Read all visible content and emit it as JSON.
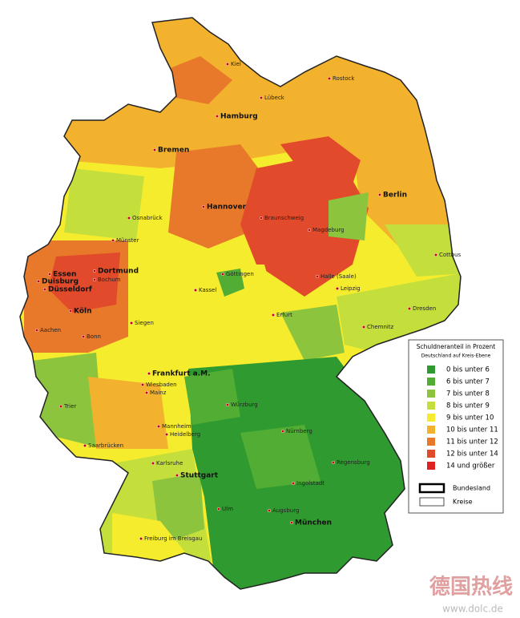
{
  "legend": {
    "title": "Schuldneranteil in Prozent",
    "subtitle": "Deutschland auf Kreis-Ebene",
    "items": [
      {
        "label": "0 bis unter 6",
        "color": "#2f9a2f"
      },
      {
        "label": "6 bis unter 7",
        "color": "#52ad35"
      },
      {
        "label": "7 bis unter 8",
        "color": "#8cc43e"
      },
      {
        "label": "8 bis unter 9",
        "color": "#c4df3c"
      },
      {
        "label": "9 bis unter 10",
        "color": "#f6ec2e"
      },
      {
        "label": "10 bis unter 11",
        "color": "#f3b22d"
      },
      {
        "label": "11 bis unter 12",
        "color": "#e8792b"
      },
      {
        "label": "12 bis unter 14",
        "color": "#e14a2b"
      },
      {
        "label": "14 und größer",
        "color": "#dd2222"
      }
    ],
    "boundaries": [
      "Bundesland",
      "Kreise"
    ]
  },
  "cities": [
    "Kiel",
    "Rostock",
    "Lübeck",
    "Hamburg",
    "Bremen",
    "Berlin",
    "Hannover",
    "Osnabrück",
    "Braunschweig",
    "Magdeburg",
    "Münster",
    "Cottbus",
    "Göttingen",
    "Halle (Saale)",
    "Dortmund",
    "Essen",
    "Bochum",
    "Duisburg",
    "Düsseldorf",
    "Leipzig",
    "Kassel",
    "Dresden",
    "Köln",
    "Erfurt",
    "Siegen",
    "Aachen",
    "Chemnitz",
    "Bonn",
    "Frankfurt a.M.",
    "Wiesbaden",
    "Mainz",
    "Würzburg",
    "Trier",
    "Mannheim",
    "Nürnberg",
    "Heidelberg",
    "Saarbrücken",
    "Regensburg",
    "Karlsruhe",
    "Stuttgart",
    "Ingolstadt",
    "Ulm",
    "Augsburg",
    "München",
    "Freiburg im Breisgau"
  ],
  "watermark": {
    "brand": "德国热线",
    "url": "www.dolc.de"
  }
}
